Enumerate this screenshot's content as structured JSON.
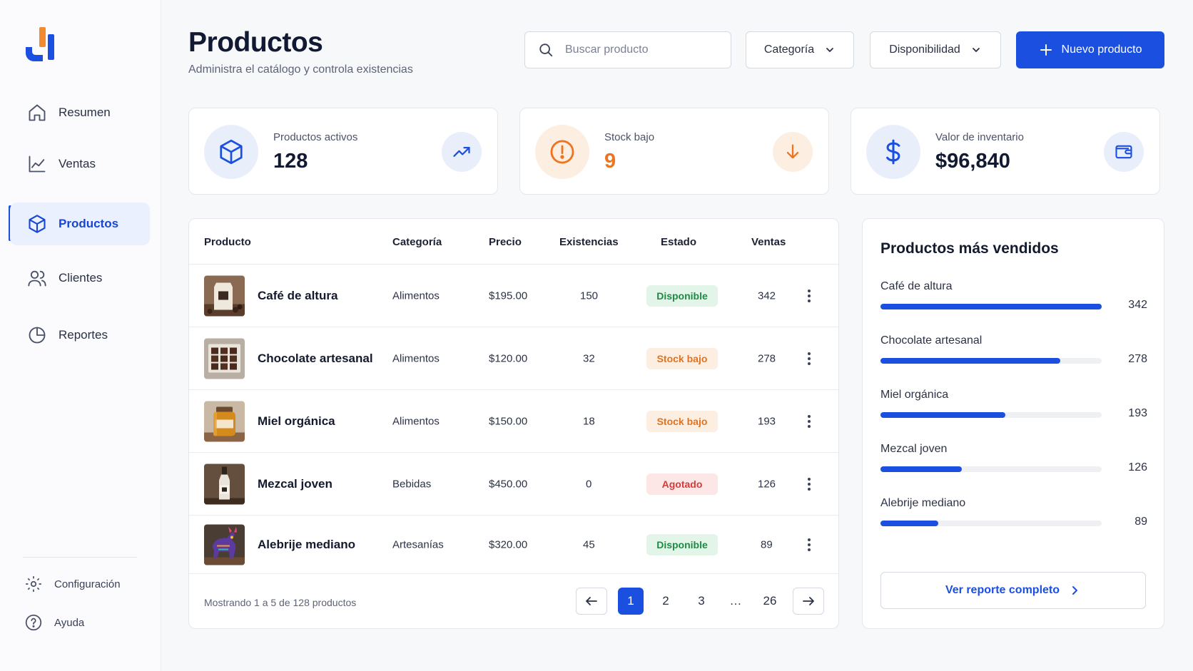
{
  "colors": {
    "accent": "#1a4fe0",
    "success": "#1f8a44",
    "warning": "#e0731f",
    "danger": "#d43b3b"
  },
  "sidebar": {
    "logo_icon": "bar-chart-logo",
    "items": [
      {
        "label": "Resumen",
        "icon": "home-icon",
        "active": false
      },
      {
        "label": "Ventas",
        "icon": "line-chart-icon",
        "active": false
      },
      {
        "label": "Productos",
        "icon": "box-icon",
        "active": true
      },
      {
        "label": "Clientes",
        "icon": "users-icon",
        "active": false
      },
      {
        "label": "Reportes",
        "icon": "pie-chart-icon",
        "active": false
      }
    ],
    "bottom": [
      {
        "label": "Configuración",
        "icon": "gear-icon"
      },
      {
        "label": "Ayuda",
        "icon": "help-icon"
      }
    ]
  },
  "header": {
    "title": "Productos",
    "subtitle": "Administra el catálogo y controla existencias",
    "search_placeholder": "Buscar producto",
    "filter_category": "Categoría",
    "filter_availability": "Disponibilidad",
    "new_button": "Nuevo producto"
  },
  "stats": [
    {
      "label": "Productos activos",
      "value": "128",
      "icon": "box-icon",
      "trend_icon": "trend-up-icon"
    },
    {
      "label": "Stock bajo",
      "value": "9",
      "icon": "alert-icon",
      "trend_icon": "arrow-down-icon"
    },
    {
      "label": "Valor de inventario",
      "value": "$96,840",
      "icon": "dollar-icon",
      "trend_icon": "wallet-icon"
    }
  ],
  "table": {
    "columns": [
      "Producto",
      "Categoría",
      "Precio",
      "Existencias",
      "Estado",
      "Ventas"
    ],
    "rows": [
      {
        "name": "Café de altura",
        "category": "Alimentos",
        "price": "$195.00",
        "stock": "150",
        "status": "Disponible",
        "status_type": "ok",
        "sales": "342",
        "thumb": "coffee-bag"
      },
      {
        "name": "Chocolate artesanal",
        "category": "Alimentos",
        "price": "$120.00",
        "stock": "32",
        "status": "Stock bajo",
        "status_type": "low",
        "sales": "278",
        "thumb": "chocolate-box"
      },
      {
        "name": "Miel orgánica",
        "category": "Alimentos",
        "price": "$150.00",
        "stock": "18",
        "status": "Stock bajo",
        "status_type": "low",
        "sales": "193",
        "thumb": "honey-jar"
      },
      {
        "name": "Mezcal joven",
        "category": "Bebidas",
        "price": "$450.00",
        "stock": "0",
        "status": "Agotado",
        "status_type": "out",
        "sales": "126",
        "thumb": "mezcal-bottle"
      },
      {
        "name": "Alebrije mediano",
        "category": "Artesanías",
        "price": "$320.00",
        "stock": "45",
        "status": "Disponible",
        "status_type": "ok",
        "sales": "89",
        "thumb": "alebrije-figure"
      }
    ],
    "footer": "Mostrando 1 a 5 de 128 productos",
    "pagination": {
      "pages": [
        "1",
        "2",
        "3",
        "…",
        "26"
      ],
      "current": "1"
    }
  },
  "top_sellers": {
    "title": "Productos más vendidos",
    "max": 342,
    "items": [
      {
        "label": "Café de altura",
        "value": 342
      },
      {
        "label": "Chocolate artesanal",
        "value": 278
      },
      {
        "label": "Miel orgánica",
        "value": 193
      },
      {
        "label": "Mezcal joven",
        "value": 126
      },
      {
        "label": "Alebrije mediano",
        "value": 89
      }
    ],
    "button": "Ver reporte completo"
  }
}
